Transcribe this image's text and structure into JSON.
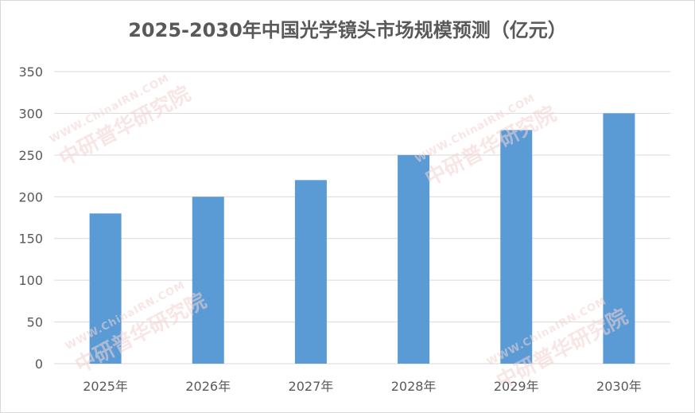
{
  "chart_data": {
    "type": "bar",
    "title": "2025-2030年中国光学镜头市场规模预测（亿元）",
    "categories": [
      "2025年",
      "2026年",
      "2027年",
      "2028年",
      "2029年",
      "2030年"
    ],
    "series": [
      {
        "values": [
          180,
          200,
          220,
          250,
          280,
          300
        ]
      }
    ],
    "ylim": [
      0,
      350
    ],
    "yticks": [
      0,
      50,
      100,
      150,
      200,
      250,
      300,
      350
    ],
    "grid": true,
    "legend": "none",
    "bar_color": "#5b9bd5",
    "grid_color": "#d9d9d9",
    "text_color": "#595959"
  },
  "watermark": {
    "url": "WWW.ChinaIRN.COM",
    "name": "中研普华研究院",
    "logo": "CIRN"
  }
}
